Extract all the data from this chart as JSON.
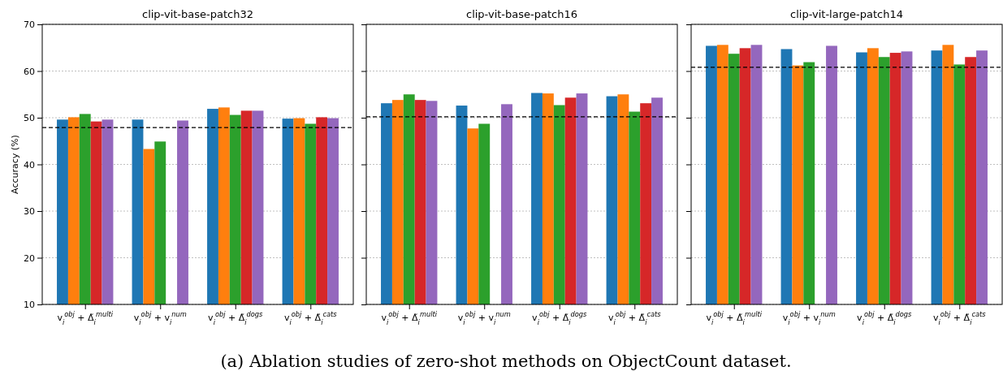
{
  "chart_data": [
    {
      "type": "bar",
      "title": "clip-vit-base-patch32",
      "ylabel": "Accuracy (%)",
      "categories": [
        "v$_{i}$$^{obj}$ + Δ̃$_{i}$$^{multi}$",
        "v$_{i}$$^{obj}$ + v$_{i}$$^{num}$",
        "v$_{i}$$^{obj}$ + Δ̃$_{i}$$^{dogs}$",
        "v$_{i}$$^{obj}$ + Δ̃$_{i}$$^{cats}$"
      ],
      "series": [
        {
          "color": "#1f77b4",
          "values": [
            49.6,
            49.6,
            51.9,
            49.8
          ]
        },
        {
          "color": "#ff7f0e",
          "values": [
            50.1,
            43.3,
            52.2,
            49.9
          ]
        },
        {
          "color": "#2ca02c",
          "values": [
            50.8,
            44.9,
            50.6,
            48.7
          ]
        },
        {
          "color": "#d62728",
          "values": [
            49.2,
            null,
            51.5,
            50.1
          ]
        },
        {
          "color": "#9467bd",
          "values": [
            49.6,
            49.4,
            51.5,
            49.9
          ]
        }
      ],
      "ylim": [
        10,
        70
      ],
      "yticks": [
        10,
        20,
        30,
        40,
        50,
        60,
        70
      ],
      "grid": "y",
      "ref_lines": [
        {
          "axis": "y",
          "value": 47.9,
          "color": "#000000",
          "line_style": "dashed"
        }
      ],
      "annotations": [
        "(a) Ablation studies of zero-shot methods on ObjectCount dataset."
      ]
    },
    {
      "type": "bar",
      "title": "clip-vit-base-patch16",
      "categories": [
        "v$_{i}$$^{obj}$ + Δ̃$_{i}$$^{multi}$",
        "v$_{i}$$^{obj}$ + v$_{i}$$^{num}$",
        "v$_{i}$$^{obj}$ + Δ̃$_{i}$$^{dogs}$",
        "v$_{i}$$^{obj}$ + Δ̃$_{i}$$^{cats}$"
      ],
      "series": [
        {
          "color": "#1f77b4",
          "values": [
            53.1,
            52.6,
            55.3,
            54.6
          ]
        },
        {
          "color": "#ff7f0e",
          "values": [
            53.8,
            47.7,
            55.2,
            55.0
          ]
        },
        {
          "color": "#2ca02c",
          "values": [
            55.0,
            48.7,
            52.7,
            51.3
          ]
        },
        {
          "color": "#d62728",
          "values": [
            53.8,
            null,
            54.3,
            53.1
          ]
        },
        {
          "color": "#9467bd",
          "values": [
            53.6,
            52.9,
            55.2,
            54.3
          ]
        }
      ],
      "ylim": [
        10,
        70
      ],
      "yticks": [
        10,
        20,
        30,
        40,
        50,
        60,
        70
      ],
      "grid": "y",
      "tick_labels": "x",
      "ref_lines": [
        {
          "axis": "y",
          "value": 50.2,
          "color": "#000000",
          "line_style": "dashed"
        }
      ]
    },
    {
      "type": "bar",
      "title": "clip-vit-large-patch14",
      "categories": [
        "v$_{i}$$^{obj}$ + Δ̃$_{i}$$^{multi}$",
        "v$_{i}$$^{obj}$ + v$_{i}$$^{num}$",
        "v$_{i}$$^{obj}$ + Δ̃$_{i}$$^{dogs}$",
        "v$_{i}$$^{obj}$ + Δ̃$_{i}$$^{cats}$"
      ],
      "series": [
        {
          "color": "#1f77b4",
          "values": [
            65.4,
            64.7,
            64.0,
            64.4
          ]
        },
        {
          "color": "#ff7f0e",
          "values": [
            65.6,
            61.2,
            64.9,
            65.6
          ]
        },
        {
          "color": "#2ca02c",
          "values": [
            63.7,
            61.9,
            63.0,
            61.4
          ]
        },
        {
          "color": "#d62728",
          "values": [
            64.9,
            null,
            63.9,
            63.0
          ]
        },
        {
          "color": "#9467bd",
          "values": [
            65.6,
            65.4,
            64.2,
            64.4
          ]
        }
      ],
      "ylim": [
        10,
        70
      ],
      "yticks": [
        10,
        20,
        30,
        40,
        50,
        60,
        70
      ],
      "grid": "y",
      "tick_labels": "x",
      "ref_lines": [
        {
          "axis": "y",
          "value": 60.8,
          "color": "#000000",
          "line_style": "dashed"
        }
      ]
    }
  ]
}
